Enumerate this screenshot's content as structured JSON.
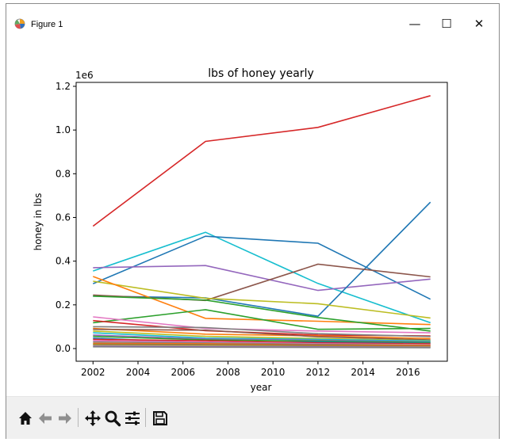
{
  "window": {
    "title": "Figure 1",
    "minimize_glyph": "—",
    "maximize_glyph": "☐",
    "close_glyph": "✕"
  },
  "toolbar": {
    "buttons": [
      {
        "name": "home-icon"
      },
      {
        "name": "back-arrow-icon"
      },
      {
        "name": "forward-arrow-icon"
      },
      {
        "name": "pan-icon"
      },
      {
        "name": "zoom-icon"
      },
      {
        "name": "subplots-configure-icon"
      },
      {
        "name": "save-icon"
      }
    ]
  },
  "chart_data": {
    "type": "line",
    "title": "lbs of honey yearly",
    "xlabel": "year",
    "ylabel": "honey in lbs",
    "y_offset_label": "1e6",
    "x": [
      2002,
      2007,
      2012,
      2017
    ],
    "xlim": [
      2001.25,
      2017.75
    ],
    "ylim": [
      -58000,
      1218000
    ],
    "xticks": [
      2002,
      2004,
      2006,
      2008,
      2010,
      2012,
      2014,
      2016
    ],
    "yticks": [
      0.0,
      0.2,
      0.4,
      0.6,
      0.8,
      1.0,
      1.2
    ],
    "grid": false,
    "series": [
      {
        "color": "#d62728",
        "values": [
          560000,
          948000,
          1012000,
          1157000
        ]
      },
      {
        "color": "#17becf",
        "values": [
          355000,
          532000,
          298000,
          118000
        ]
      },
      {
        "color": "#1f77b4",
        "values": [
          297000,
          514000,
          482000,
          226000
        ]
      },
      {
        "color": "#9467bd",
        "values": [
          370000,
          380000,
          266000,
          318000
        ]
      },
      {
        "color": "#1f77b4",
        "values": [
          240000,
          232000,
          148000,
          670000
        ]
      },
      {
        "color": "#8c564b",
        "values": [
          245000,
          220000,
          386000,
          328000
        ]
      },
      {
        "color": "#bcbd22",
        "values": [
          308000,
          230000,
          205000,
          140000
        ]
      },
      {
        "color": "#ff7f0e",
        "values": [
          330000,
          138000,
          125000,
          110000
        ]
      },
      {
        "color": "#2ca02c",
        "values": [
          118000,
          178000,
          88000,
          92000
        ]
      },
      {
        "color": "#2ca02c",
        "values": [
          240000,
          222000,
          142000,
          80000
        ]
      },
      {
        "color": "#e377c2",
        "values": [
          145000,
          92000,
          80000,
          72000
        ]
      },
      {
        "color": "#d62728",
        "values": [
          128000,
          82000,
          62000,
          58000
        ]
      },
      {
        "color": "#7f7f7f",
        "values": [
          100000,
          96000,
          68000,
          55000
        ]
      },
      {
        "color": "#ff7f0e",
        "values": [
          92000,
          66000,
          58000,
          46000
        ]
      },
      {
        "color": "#8c564b",
        "values": [
          88000,
          84000,
          54000,
          40000
        ]
      },
      {
        "color": "#bcbd22",
        "values": [
          80000,
          56000,
          46000,
          36000
        ]
      },
      {
        "color": "#17becf",
        "values": [
          72000,
          48000,
          42000,
          34000
        ]
      },
      {
        "color": "#9467bd",
        "values": [
          62000,
          44000,
          38000,
          30000
        ]
      },
      {
        "color": "#2ca02c",
        "values": [
          56000,
          40000,
          34000,
          28000
        ]
      },
      {
        "color": "#1f77b4",
        "values": [
          48000,
          26000,
          30000,
          24000
        ]
      },
      {
        "color": "#d62728",
        "values": [
          42000,
          36000,
          26000,
          22000
        ]
      },
      {
        "color": "#e377c2",
        "values": [
          36000,
          30000,
          22000,
          18000
        ]
      },
      {
        "color": "#7f7f7f",
        "values": [
          30000,
          26000,
          20000,
          16000
        ]
      },
      {
        "color": "#ff7f0e",
        "values": [
          24000,
          22000,
          16000,
          14000
        ]
      },
      {
        "color": "#8c564b",
        "values": [
          20000,
          18000,
          14000,
          10000
        ]
      },
      {
        "color": "#bcbd22",
        "values": [
          16000,
          14000,
          10000,
          8000
        ]
      },
      {
        "color": "#9467bd",
        "values": [
          12000,
          10000,
          8000,
          6000
        ]
      },
      {
        "color": "#7f7f7f",
        "values": [
          8000,
          6000,
          5000,
          4000
        ]
      }
    ]
  }
}
